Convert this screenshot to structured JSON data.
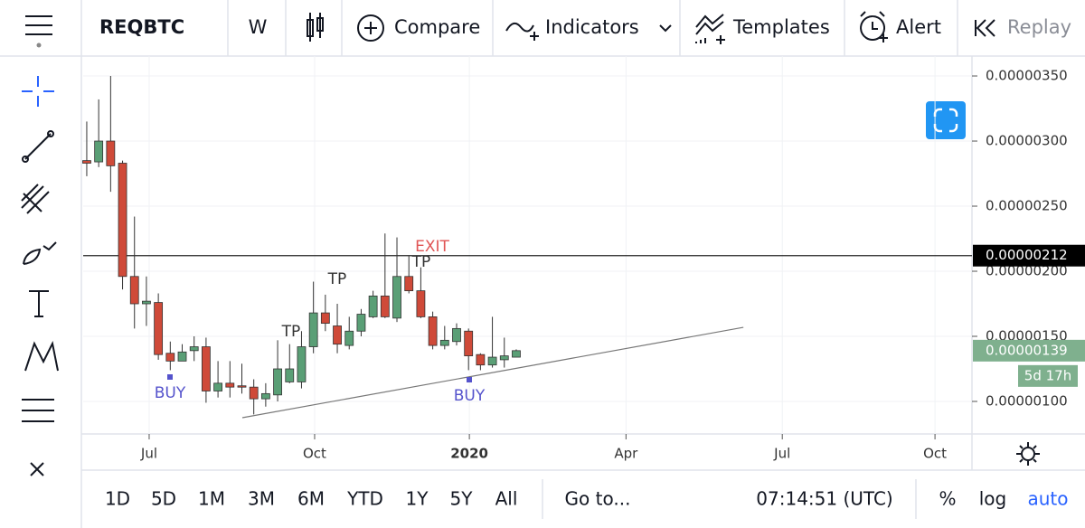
{
  "toolbar": {
    "symbol": "REQBTC",
    "interval": "W",
    "items": [
      "Compare",
      "Indicators",
      "Templates",
      "Alert",
      "Replay"
    ]
  },
  "chart_data": {
    "type": "candlestick",
    "categories": [
      null,
      null,
      null,
      null,
      null,
      null,
      null,
      null,
      null,
      null,
      null,
      null,
      null,
      null,
      null,
      null,
      null,
      null,
      null,
      null,
      null,
      null,
      null,
      null,
      null,
      null,
      null,
      null,
      null,
      null,
      null,
      null,
      null,
      null,
      null,
      null,
      null
    ],
    "open": [
      2.85e-06,
      2.84e-06,
      3e-06,
      2.83e-06,
      1.96e-06,
      1.75e-06,
      1.76e-06,
      1.37e-06,
      1.31e-06,
      1.39e-06,
      1.42e-06,
      1.08e-06,
      1.14e-06,
      1.12e-06,
      1.11e-06,
      1.02e-06,
      1.05e-06,
      1.15e-06,
      1.15e-06,
      1.42e-06,
      1.68e-06,
      1.58e-06,
      1.43e-06,
      1.54e-06,
      1.65e-06,
      1.81e-06,
      1.64e-06,
      1.96e-06,
      1.85e-06,
      1.65e-06,
      1.43e-06,
      1.46e-06,
      1.54e-06,
      1.36e-06,
      1.28e-06,
      1.32e-06,
      1.34e-06
    ],
    "high": [
      3.15e-06,
      3.32e-06,
      3.5e-06,
      2.85e-06,
      2.42e-06,
      1.96e-06,
      1.83e-06,
      1.46e-06,
      1.44e-06,
      1.5e-06,
      1.49e-06,
      1.31e-06,
      1.31e-06,
      1.29e-06,
      1.17e-06,
      1.14e-06,
      1.47e-06,
      1.44e-06,
      1.54e-06,
      1.92e-06,
      1.82e-06,
      1.75e-06,
      1.65e-06,
      1.71e-06,
      1.85e-06,
      2.29e-06,
      2.26e-06,
      2.12e-06,
      2.03e-06,
      1.69e-06,
      1.58e-06,
      1.6e-06,
      1.56e-06,
      1.37e-06,
      1.65e-06,
      1.49e-06,
      1.4e-06
    ],
    "low": [
      2.73e-06,
      2.8e-06,
      2.61e-06,
      1.86e-06,
      1.56e-06,
      1.58e-06,
      1.32e-06,
      1.24e-06,
      1.31e-06,
      1.31e-06,
      9.9e-07,
      1.03e-06,
      1.03e-06,
      1.06e-06,
      9e-07,
      9.6e-07,
      1e-06,
      1.14e-06,
      1.1e-06,
      1.37e-06,
      1.54e-06,
      1.37e-06,
      1.4e-06,
      1.5e-06,
      1.64e-06,
      1.64e-06,
      1.61e-06,
      1.83e-06,
      1.64e-06,
      1.4e-06,
      1.4e-06,
      1.43e-06,
      1.24e-06,
      1.24e-06,
      1.26e-06,
      1.26e-06,
      1.34e-06
    ],
    "close": [
      2.83e-06,
      3e-06,
      2.81e-06,
      1.96e-06,
      1.75e-06,
      1.77e-06,
      1.36e-06,
      1.31e-06,
      1.38e-06,
      1.42e-06,
      1.08e-06,
      1.14e-06,
      1.11e-06,
      1.11e-06,
      1.02e-06,
      1.06e-06,
      1.25e-06,
      1.25e-06,
      1.42e-06,
      1.68e-06,
      1.6e-06,
      1.44e-06,
      1.54e-06,
      1.67e-06,
      1.81e-06,
      1.65e-06,
      1.96e-06,
      1.85e-06,
      1.65e-06,
      1.43e-06,
      1.47e-06,
      1.56e-06,
      1.35e-06,
      1.28e-06,
      1.34e-06,
      1.35e-06,
      1.39e-06
    ],
    "up_color": "#5a9f76",
    "down_color": "#cf4a39",
    "xlim": [
      -0.3,
      74.2
    ],
    "xticks": [
      {
        "value": 5.23,
        "label": "Jul"
      },
      {
        "value": 19.1,
        "label": "Oct"
      },
      {
        "value": 32.07,
        "label": "2020"
      },
      {
        "value": 45.2,
        "label": "Apr"
      },
      {
        "value": 58.3,
        "label": "Jul"
      },
      {
        "value": 71.1,
        "label": "Oct"
      }
    ],
    "ylim": [
      7.5e-07,
      3.653e-06
    ],
    "yticks": [
      {
        "value": 1e-06,
        "label": "0.00000100"
      },
      {
        "value": 1.5e-06,
        "label": "0.00000150"
      },
      {
        "value": 2e-06,
        "label": "0.00000200"
      },
      {
        "value": 2.5e-06,
        "label": "0.00000250"
      },
      {
        "value": 3e-06,
        "label": "0.00000300"
      },
      {
        "value": 3.5e-06,
        "label": "0.00000350"
      }
    ],
    "grid": true,
    "price_labels": [
      {
        "value": 2.12e-06,
        "label": "0.00000212",
        "color": "#000000"
      },
      {
        "value": 1.39e-06,
        "label": "0.00000139",
        "color": "#7fb08e"
      }
    ],
    "countdown": "5d 17h",
    "trendline": {
      "x": [
        13.04,
        55.04
      ],
      "y": [
        8.75e-07,
        1.569e-06
      ]
    },
    "annotations": [
      "BUY",
      "TP",
      "TP",
      "EXIT",
      "TP",
      "BUY"
    ]
  },
  "bottom_bar": {
    "ranges": [
      "1D",
      "5D",
      "1M",
      "3M",
      "6M",
      "YTD",
      "1Y",
      "5Y",
      "All"
    ],
    "goto": "Go to...",
    "clock": "07:14:51 (UTC)",
    "options": [
      "%",
      "log",
      "auto"
    ]
  }
}
